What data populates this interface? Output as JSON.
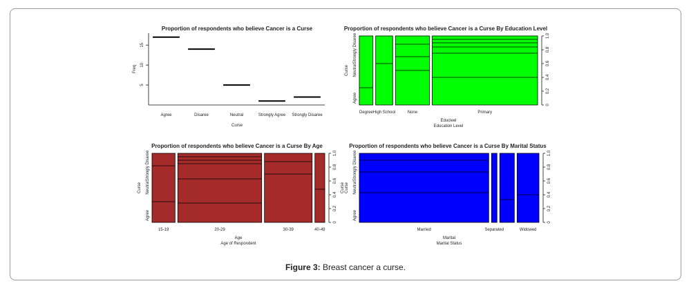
{
  "figure": {
    "caption_label": "Figure 3:",
    "caption_text": " Breast cancer a curse."
  },
  "colors": {
    "green": "#00ff00",
    "red": "#a52a2a",
    "blue": "#0000ff"
  },
  "chart_data": [
    {
      "type": "line",
      "title": "Proportion of respondents who believe Cancer is a Curse",
      "xlabel": "Curse",
      "ylabel": "Freq",
      "categories": [
        "Agree",
        "Disaree",
        "Neutral",
        "Strongly Agree",
        "Strongly Disaree"
      ],
      "values": [
        17,
        14,
        5,
        1,
        2
      ],
      "yticks": [
        "5",
        "10",
        "15"
      ],
      "ylim": [
        0,
        18
      ]
    },
    {
      "type": "bar",
      "title": "Proportion of respondents who believe Cancer is a Curse By Education Level",
      "xlabel": "Educleel",
      "xlabel2": "Education Level",
      "ylabel": "Curse",
      "ylabel_right": "",
      "y_levels": [
        "Agree",
        "Neutral",
        "Strongly Disaree"
      ],
      "right_ticks": [
        "0",
        "0.2",
        "0.4",
        "0.6",
        "0.8",
        "1.0"
      ],
      "fill": "#00ff00",
      "categories": [
        "Degree",
        "High School",
        "None",
        "Primary"
      ],
      "widths": [
        0.08,
        0.1,
        0.2,
        0.62
      ],
      "splits": [
        [
          0.25
        ],
        [
          0.6
        ],
        [
          0.5,
          0.7,
          0.88
        ],
        [
          0.4,
          0.75,
          0.84,
          0.9,
          0.95
        ]
      ]
    },
    {
      "type": "bar",
      "title": "Proportion of respondents who believe Cancer is a Curse By Age",
      "xlabel": "Age",
      "xlabel2": "Age of Respondent",
      "ylabel": "Curse",
      "ylabel_right": "Curse",
      "y_levels": [
        "Agree",
        "Neutral",
        "Strongly Disaree"
      ],
      "right_ticks": [
        "0",
        "0.2",
        "0.4",
        "0.6",
        "0.8",
        "1.0"
      ],
      "fill": "#a52a2a",
      "categories": [
        "15-19",
        "20-29",
        "30-39",
        "40-49"
      ],
      "widths": [
        0.14,
        0.51,
        0.29,
        0.06
      ],
      "splits": [
        [
          0.3,
          0.82
        ],
        [
          0.28,
          0.63,
          0.85,
          0.9,
          0.95
        ],
        [
          0.7,
          0.88
        ],
        [
          0.48
        ]
      ]
    },
    {
      "type": "bar",
      "title": "Proportion of respondents who believe Cancer is a Curse By Marital Status",
      "xlabel": "Marital",
      "xlabel2": "Marital Status",
      "ylabel": "Curse",
      "ylabel_right": "",
      "y_levels": [
        "Agree",
        "Neutral",
        "Strongly Disaree"
      ],
      "right_ticks": [
        "0",
        "0.2",
        "0.4",
        "0.6",
        "0.8",
        "1.0"
      ],
      "fill": "#0000ff",
      "categories": [
        "Married",
        "Separated",
        "Widowed"
      ],
      "subbars": [
        {
          "label": "Married",
          "width": 0.71,
          "splits": [
            0.43,
            0.73,
            0.9
          ]
        },
        {
          "label": "Separated",
          "width": 0.03,
          "splits": []
        },
        {
          "label": "",
          "width": 0.08,
          "splits": [
            0.33
          ]
        },
        {
          "label": "Widowed",
          "width": 0.12,
          "splits": [
            0.4
          ]
        }
      ]
    }
  ]
}
